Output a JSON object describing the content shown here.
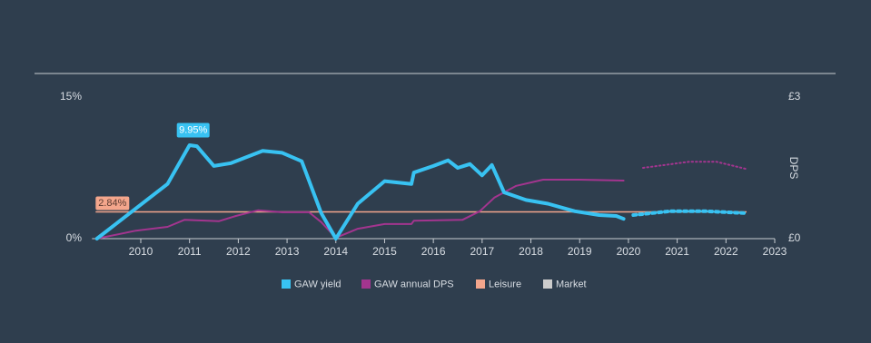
{
  "chart_data": {
    "type": "line",
    "xlim": [
      2009,
      2023
    ],
    "xticks": [
      2010,
      2011,
      2012,
      2013,
      2014,
      2015,
      2016,
      2017,
      2018,
      2019,
      2020,
      2021,
      2022,
      2023
    ],
    "ylim": [
      0,
      15
    ],
    "yticks": [
      {
        "value": 0,
        "label": "0%"
      },
      {
        "value": 15,
        "label": "15%"
      }
    ],
    "y2lim": [
      0,
      3
    ],
    "y2ticks": [
      {
        "value": 0,
        "label": "£0"
      },
      {
        "value": 3,
        "label": "£3"
      }
    ],
    "y2label": "DPS",
    "series": [
      {
        "name": "GAW yield",
        "color": "#38c2f2",
        "x": [
          2009.1,
          2010.55,
          2011.0,
          2011.15,
          2011.5,
          2011.85,
          2012.5,
          2012.9,
          2013.3,
          2013.7,
          2014.0,
          2014.45,
          2015.0,
          2015.55,
          2015.6,
          2016.0,
          2016.3,
          2016.5,
          2016.75,
          2017.0,
          2017.2,
          2017.45,
          2017.9,
          2018.35,
          2018.9,
          2019.4,
          2019.75,
          2019.9
        ],
        "values": [
          0,
          5.8,
          9.9,
          9.8,
          7.7,
          8.0,
          9.3,
          9.1,
          8.2,
          2.7,
          0,
          3.7,
          6.1,
          5.8,
          7.0,
          7.7,
          8.3,
          7.5,
          7.9,
          6.7,
          7.8,
          4.9,
          4.1,
          3.7,
          2.9,
          2.5,
          2.4,
          2.1
        ],
        "forecast": {
          "x": [
            2020.1,
            2020.85,
            2021.6,
            2022.4
          ],
          "values": [
            2.5,
            2.9,
            2.9,
            2.7
          ]
        }
      },
      {
        "name": "GAW annual DPS",
        "color": "#a3358f",
        "axis": "y2",
        "x": [
          2009.1,
          2009.9,
          2010.55,
          2010.9,
          2011.6,
          2011.95,
          2012.4,
          2012.9,
          2013.45,
          2013.7,
          2014.0,
          2014.45,
          2015.0,
          2015.55,
          2015.6,
          2016.6,
          2016.95,
          2017.25,
          2017.7,
          2018.25,
          2019.0,
          2019.9
        ],
        "values": [
          0,
          0.17,
          0.25,
          0.4,
          0.37,
          0.48,
          0.6,
          0.56,
          0.56,
          0.35,
          0.02,
          0.21,
          0.31,
          0.31,
          0.38,
          0.4,
          0.58,
          0.87,
          1.12,
          1.25,
          1.25,
          1.23
        ],
        "forecast": {
          "x": [
            2020.3,
            2021.25,
            2021.8,
            2022.4
          ],
          "values": [
            1.5,
            1.63,
            1.63,
            1.48
          ]
        }
      },
      {
        "name": "Leisure",
        "color": "#f4a68c",
        "value": 2.84,
        "value_label": "2.84%"
      },
      {
        "name": "Market",
        "color": "#cccccc"
      }
    ],
    "annotation": {
      "x": 2011.0,
      "value": 9.95,
      "label": "9.95%"
    }
  }
}
